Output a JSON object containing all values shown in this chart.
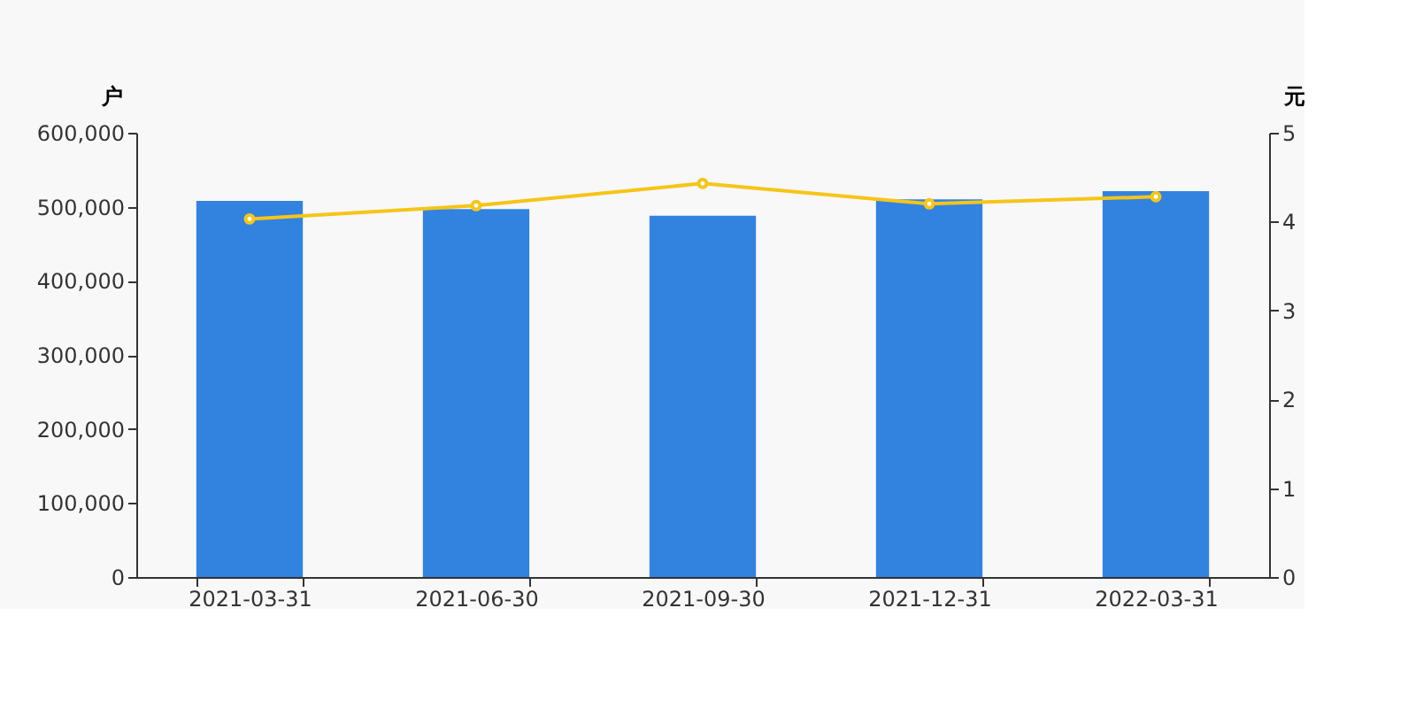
{
  "chart_data": {
    "type": "bar",
    "categories": [
      "2021-03-31",
      "2021-06-30",
      "2021-09-30",
      "2021-12-31",
      "2022-03-31"
    ],
    "ylabel": "户",
    "y2label": "元",
    "series": [
      {
        "color": "#3282e0",
        "values": [
          508000,
          497000,
          488000,
          510000,
          521000
        ]
      },
      {
        "type": "line",
        "axis": "y2",
        "color": "#f5c518",
        "values": [
          4.03,
          4.18,
          4.43,
          4.2,
          4.28
        ]
      }
    ],
    "ylim": [
      0,
      600000
    ],
    "yticks": [
      0,
      {
        "value": 100000,
        "label": "100,000"
      },
      {
        "value": 200000,
        "label": "200,000"
      },
      {
        "value": 300000,
        "label": "300,000"
      },
      {
        "value": 400000,
        "label": "400,000"
      },
      {
        "value": 500000,
        "label": "500,000"
      },
      {
        "value": 600000,
        "label": "600,000"
      }
    ],
    "y2lim": [
      0,
      5
    ],
    "y2ticks": [
      0,
      1,
      2,
      3,
      4,
      5
    ],
    "grid": false,
    "marker": "circle",
    "line_style": "solid"
  }
}
